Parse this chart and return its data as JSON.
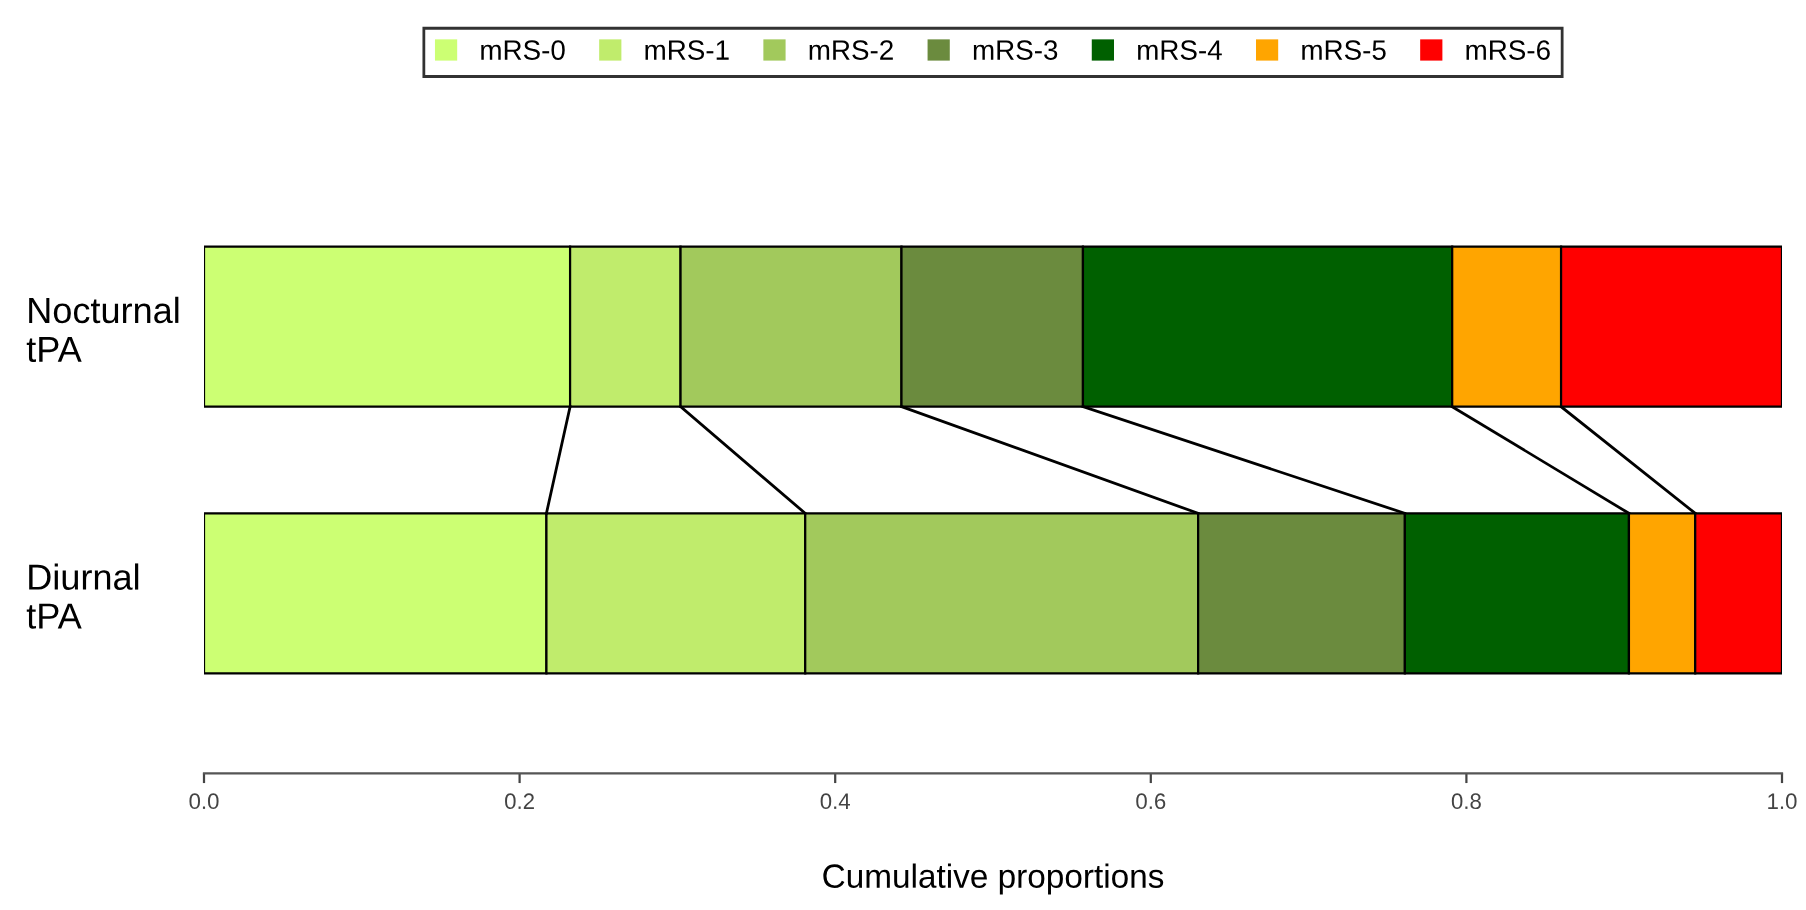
{
  "chart_data": {
    "type": "bar",
    "orientation": "horizontal",
    "stacked": true,
    "categories": [
      "Nocturnal\ntPA",
      "Diurnal\ntPA"
    ],
    "series": [
      {
        "name": "mRS-0",
        "color": "#ccff73",
        "values": [
          0.232,
          0.217
        ]
      },
      {
        "name": "mRS-1",
        "color": "#c0ec6c",
        "values": [
          0.07,
          0.164
        ]
      },
      {
        "name": "mRS-2",
        "color": "#a2c95c",
        "values": [
          0.14,
          0.249
        ]
      },
      {
        "name": "mRS-3",
        "color": "#6b8b3e",
        "values": [
          0.115,
          0.131
        ]
      },
      {
        "name": "mRS-4",
        "color": "#006000",
        "values": [
          0.234,
          0.142
        ]
      },
      {
        "name": "mRS-5",
        "color": "#ffa500",
        "values": [
          0.069,
          0.042
        ]
      },
      {
        "name": "mRS-6",
        "color": "#ff0000",
        "values": [
          0.14,
          0.055
        ]
      }
    ],
    "xlabel": "Cumulative proportions",
    "xlim": [
      0,
      1
    ],
    "xticks": [
      {
        "value": 0,
        "label": "0.0"
      },
      {
        "value": 0.2,
        "label": "0.2"
      },
      {
        "value": 0.4,
        "label": "0.4"
      },
      {
        "value": 0.6,
        "label": "0.6"
      },
      {
        "value": 0.8,
        "label": "0.8"
      },
      {
        "value": 1,
        "label": "1.0"
      }
    ],
    "legend": "top",
    "grid": false
  }
}
